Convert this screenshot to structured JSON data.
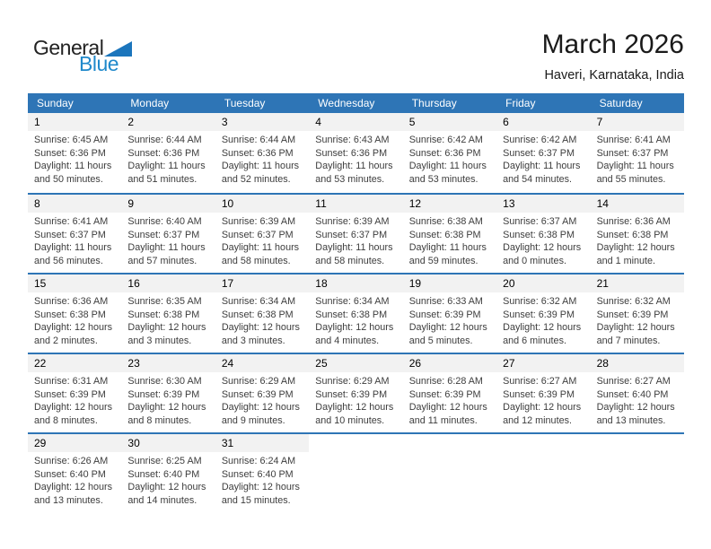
{
  "logo": {
    "part1": "General",
    "part2": "Blue",
    "triangle_color": "#1b75bc",
    "blue_text_color": "#2089cb"
  },
  "header": {
    "title": "March 2026",
    "location": "Haveri, Karnataka, India"
  },
  "colors": {
    "header_blue": "#2e75b6",
    "row_border_blue": "#2e75b6",
    "day_band_gray": "#f2f2f2",
    "body_text": "#3d3d3d"
  },
  "weekdays": [
    "Sunday",
    "Monday",
    "Tuesday",
    "Wednesday",
    "Thursday",
    "Friday",
    "Saturday"
  ],
  "weeks": [
    [
      {
        "day": "1",
        "sunrise": "Sunrise: 6:45 AM",
        "sunset": "Sunset: 6:36 PM",
        "daylight1": "Daylight: 11 hours",
        "daylight2": "and 50 minutes."
      },
      {
        "day": "2",
        "sunrise": "Sunrise: 6:44 AM",
        "sunset": "Sunset: 6:36 PM",
        "daylight1": "Daylight: 11 hours",
        "daylight2": "and 51 minutes."
      },
      {
        "day": "3",
        "sunrise": "Sunrise: 6:44 AM",
        "sunset": "Sunset: 6:36 PM",
        "daylight1": "Daylight: 11 hours",
        "daylight2": "and 52 minutes."
      },
      {
        "day": "4",
        "sunrise": "Sunrise: 6:43 AM",
        "sunset": "Sunset: 6:36 PM",
        "daylight1": "Daylight: 11 hours",
        "daylight2": "and 53 minutes."
      },
      {
        "day": "5",
        "sunrise": "Sunrise: 6:42 AM",
        "sunset": "Sunset: 6:36 PM",
        "daylight1": "Daylight: 11 hours",
        "daylight2": "and 53 minutes."
      },
      {
        "day": "6",
        "sunrise": "Sunrise: 6:42 AM",
        "sunset": "Sunset: 6:37 PM",
        "daylight1": "Daylight: 11 hours",
        "daylight2": "and 54 minutes."
      },
      {
        "day": "7",
        "sunrise": "Sunrise: 6:41 AM",
        "sunset": "Sunset: 6:37 PM",
        "daylight1": "Daylight: 11 hours",
        "daylight2": "and 55 minutes."
      }
    ],
    [
      {
        "day": "8",
        "sunrise": "Sunrise: 6:41 AM",
        "sunset": "Sunset: 6:37 PM",
        "daylight1": "Daylight: 11 hours",
        "daylight2": "and 56 minutes."
      },
      {
        "day": "9",
        "sunrise": "Sunrise: 6:40 AM",
        "sunset": "Sunset: 6:37 PM",
        "daylight1": "Daylight: 11 hours",
        "daylight2": "and 57 minutes."
      },
      {
        "day": "10",
        "sunrise": "Sunrise: 6:39 AM",
        "sunset": "Sunset: 6:37 PM",
        "daylight1": "Daylight: 11 hours",
        "daylight2": "and 58 minutes."
      },
      {
        "day": "11",
        "sunrise": "Sunrise: 6:39 AM",
        "sunset": "Sunset: 6:37 PM",
        "daylight1": "Daylight: 11 hours",
        "daylight2": "and 58 minutes."
      },
      {
        "day": "12",
        "sunrise": "Sunrise: 6:38 AM",
        "sunset": "Sunset: 6:38 PM",
        "daylight1": "Daylight: 11 hours",
        "daylight2": "and 59 minutes."
      },
      {
        "day": "13",
        "sunrise": "Sunrise: 6:37 AM",
        "sunset": "Sunset: 6:38 PM",
        "daylight1": "Daylight: 12 hours",
        "daylight2": "and 0 minutes."
      },
      {
        "day": "14",
        "sunrise": "Sunrise: 6:36 AM",
        "sunset": "Sunset: 6:38 PM",
        "daylight1": "Daylight: 12 hours",
        "daylight2": "and 1 minute."
      }
    ],
    [
      {
        "day": "15",
        "sunrise": "Sunrise: 6:36 AM",
        "sunset": "Sunset: 6:38 PM",
        "daylight1": "Daylight: 12 hours",
        "daylight2": "and 2 minutes."
      },
      {
        "day": "16",
        "sunrise": "Sunrise: 6:35 AM",
        "sunset": "Sunset: 6:38 PM",
        "daylight1": "Daylight: 12 hours",
        "daylight2": "and 3 minutes."
      },
      {
        "day": "17",
        "sunrise": "Sunrise: 6:34 AM",
        "sunset": "Sunset: 6:38 PM",
        "daylight1": "Daylight: 12 hours",
        "daylight2": "and 3 minutes."
      },
      {
        "day": "18",
        "sunrise": "Sunrise: 6:34 AM",
        "sunset": "Sunset: 6:38 PM",
        "daylight1": "Daylight: 12 hours",
        "daylight2": "and 4 minutes."
      },
      {
        "day": "19",
        "sunrise": "Sunrise: 6:33 AM",
        "sunset": "Sunset: 6:39 PM",
        "daylight1": "Daylight: 12 hours",
        "daylight2": "and 5 minutes."
      },
      {
        "day": "20",
        "sunrise": "Sunrise: 6:32 AM",
        "sunset": "Sunset: 6:39 PM",
        "daylight1": "Daylight: 12 hours",
        "daylight2": "and 6 minutes."
      },
      {
        "day": "21",
        "sunrise": "Sunrise: 6:32 AM",
        "sunset": "Sunset: 6:39 PM",
        "daylight1": "Daylight: 12 hours",
        "daylight2": "and 7 minutes."
      }
    ],
    [
      {
        "day": "22",
        "sunrise": "Sunrise: 6:31 AM",
        "sunset": "Sunset: 6:39 PM",
        "daylight1": "Daylight: 12 hours",
        "daylight2": "and 8 minutes."
      },
      {
        "day": "23",
        "sunrise": "Sunrise: 6:30 AM",
        "sunset": "Sunset: 6:39 PM",
        "daylight1": "Daylight: 12 hours",
        "daylight2": "and 8 minutes."
      },
      {
        "day": "24",
        "sunrise": "Sunrise: 6:29 AM",
        "sunset": "Sunset: 6:39 PM",
        "daylight1": "Daylight: 12 hours",
        "daylight2": "and 9 minutes."
      },
      {
        "day": "25",
        "sunrise": "Sunrise: 6:29 AM",
        "sunset": "Sunset: 6:39 PM",
        "daylight1": "Daylight: 12 hours",
        "daylight2": "and 10 minutes."
      },
      {
        "day": "26",
        "sunrise": "Sunrise: 6:28 AM",
        "sunset": "Sunset: 6:39 PM",
        "daylight1": "Daylight: 12 hours",
        "daylight2": "and 11 minutes."
      },
      {
        "day": "27",
        "sunrise": "Sunrise: 6:27 AM",
        "sunset": "Sunset: 6:39 PM",
        "daylight1": "Daylight: 12 hours",
        "daylight2": "and 12 minutes."
      },
      {
        "day": "28",
        "sunrise": "Sunrise: 6:27 AM",
        "sunset": "Sunset: 6:40 PM",
        "daylight1": "Daylight: 12 hours",
        "daylight2": "and 13 minutes."
      }
    ],
    [
      {
        "day": "29",
        "sunrise": "Sunrise: 6:26 AM",
        "sunset": "Sunset: 6:40 PM",
        "daylight1": "Daylight: 12 hours",
        "daylight2": "and 13 minutes."
      },
      {
        "day": "30",
        "sunrise": "Sunrise: 6:25 AM",
        "sunset": "Sunset: 6:40 PM",
        "daylight1": "Daylight: 12 hours",
        "daylight2": "and 14 minutes."
      },
      {
        "day": "31",
        "sunrise": "Sunrise: 6:24 AM",
        "sunset": "Sunset: 6:40 PM",
        "daylight1": "Daylight: 12 hours",
        "daylight2": "and 15 minutes."
      },
      {},
      {},
      {},
      {}
    ]
  ]
}
